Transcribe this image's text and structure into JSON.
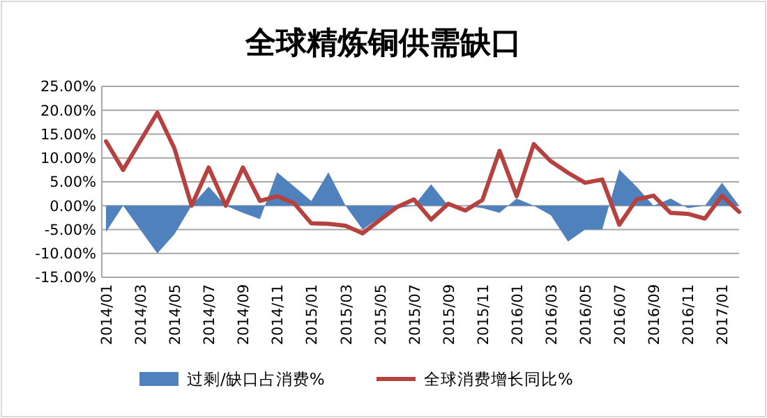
{
  "chart_data": {
    "type": "area",
    "title": "全球精炼铜供需缺口",
    "categories": [
      "2014/01",
      null,
      "2014/03",
      null,
      "2014/05",
      null,
      "2014/07",
      null,
      "2014/09",
      null,
      "2014/11",
      null,
      "2015/01",
      null,
      "2015/03",
      null,
      "2015/05",
      null,
      "2015/07",
      null,
      "2015/09",
      null,
      "2015/11",
      null,
      "2016/01",
      null,
      "2016/03",
      null,
      "2016/05",
      null,
      "2016/07",
      null,
      "2016/09",
      null,
      "2016/11",
      null,
      "2017/01",
      null
    ],
    "series": [
      {
        "name": "过剩/缺口占消费%",
        "color": "#4f81bd",
        "values": [
          -5.5,
          0,
          -5,
          -10,
          -6,
          0,
          4,
          0,
          -1.5,
          -2.8,
          7,
          4,
          1,
          7,
          0,
          -5,
          -2.5,
          -0.5,
          0,
          4.5,
          0,
          0,
          -0.5,
          -1.5,
          1.5,
          0,
          -2,
          -7.5,
          -5,
          -5,
          7.6,
          4,
          0,
          1.5,
          -0.5,
          0,
          4.8,
          0
        ]
      },
      {
        "name": "全球消费增长同比%",
        "type": "line",
        "color": "#b5423f",
        "values": [
          13.5,
          7.5,
          13.5,
          19.5,
          12,
          0,
          8,
          0,
          8,
          1,
          2,
          0.5,
          -3.7,
          -3.8,
          -4.2,
          -5.8,
          -3,
          -0.3,
          1.3,
          -2.9,
          0.4,
          -1,
          1.2,
          11.5,
          2,
          12.9,
          9.3,
          6.9,
          4.8,
          5.5,
          -4,
          1.3,
          2.1,
          -1.5,
          -1.7,
          -2.7,
          2.1,
          -1.3
        ]
      }
    ],
    "ylim": [
      -15,
      25
    ],
    "yticks": [
      {
        "value": -15,
        "label": "-15.00%"
      },
      {
        "value": -10,
        "label": "-10.00%"
      },
      {
        "value": -5,
        "label": "-5.00%"
      },
      {
        "value": 0,
        "label": "0.00%"
      },
      {
        "value": 5,
        "label": "5.00%"
      },
      {
        "value": 10,
        "label": "10.00%"
      },
      {
        "value": 15,
        "label": "15.00%"
      },
      {
        "value": 20,
        "label": "20.00%"
      },
      {
        "value": 25,
        "label": "25.00%"
      }
    ],
    "grid": "y",
    "legend": "bottom"
  }
}
